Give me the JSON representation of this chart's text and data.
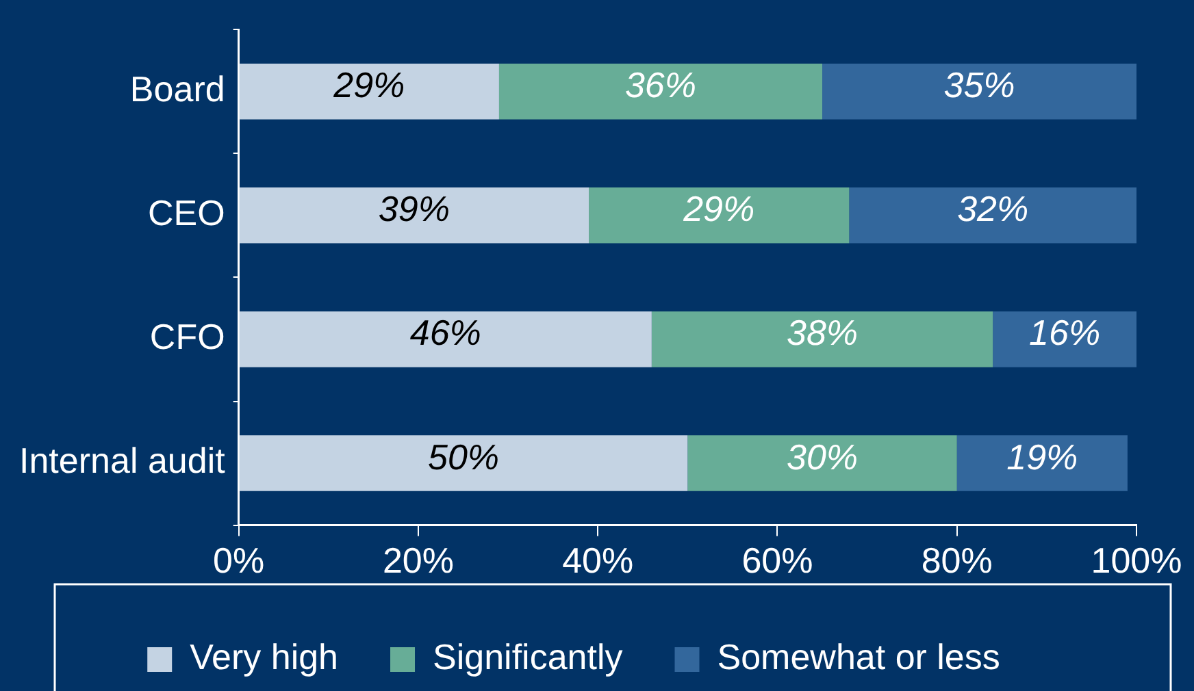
{
  "chart_data": {
    "type": "bar",
    "orientation": "horizontal",
    "stacked": true,
    "categories": [
      "Board",
      "CEO",
      "CFO",
      "Internal audit"
    ],
    "series": [
      {
        "name": "Very high",
        "color": "#c4d3e3",
        "values": [
          29,
          39,
          46,
          50
        ],
        "value_labels": [
          "29%",
          "39%",
          "46%",
          "50%"
        ]
      },
      {
        "name": "Significantly",
        "color": "#67ad97",
        "values": [
          36,
          29,
          38,
          30
        ],
        "value_labels": [
          "36%",
          "29%",
          "38%",
          "30%"
        ]
      },
      {
        "name": "Somewhat or less",
        "color": "#33679c",
        "values": [
          35,
          32,
          16,
          19
        ],
        "value_labels": [
          "35%",
          "32%",
          "16%",
          "19%"
        ]
      }
    ],
    "xlim": [
      0,
      100
    ],
    "xticks": [
      {
        "value": 0,
        "label": "0%"
      },
      {
        "value": 20,
        "label": "20%"
      },
      {
        "value": 40,
        "label": "40%"
      },
      {
        "value": 60,
        "label": "60%"
      },
      {
        "value": 80,
        "label": "80%"
      },
      {
        "value": 100,
        "label": "100%"
      }
    ],
    "grid": false,
    "legend": "bottom"
  }
}
